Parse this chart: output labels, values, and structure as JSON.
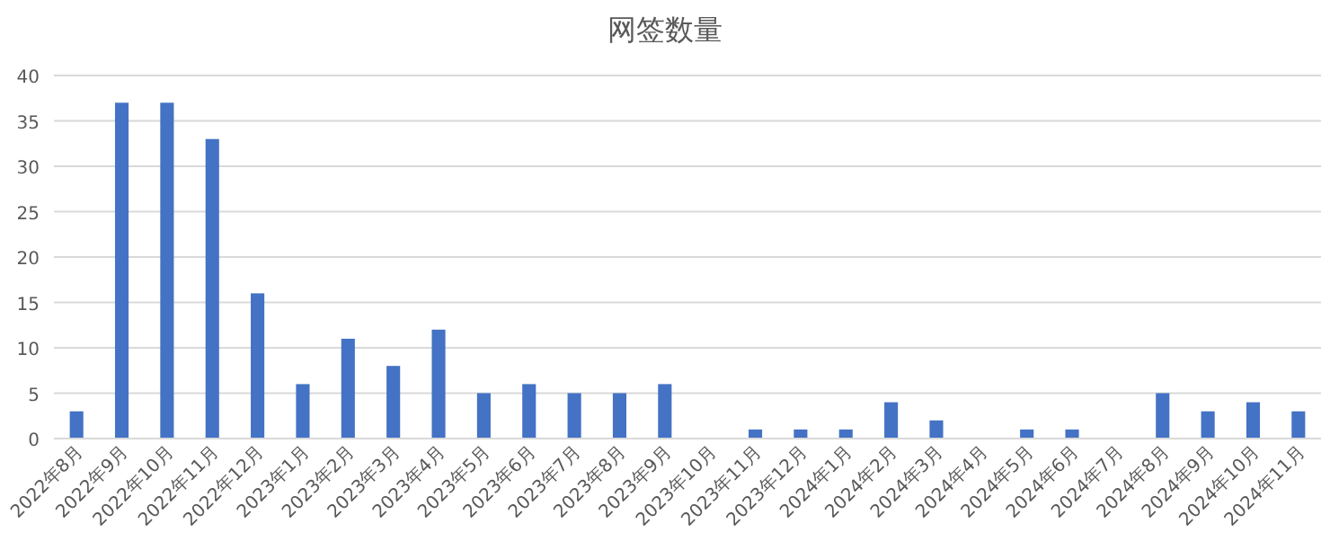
{
  "chart_data": {
    "type": "bar",
    "title": "网签数量",
    "categories": [
      "2022年8月",
      "2022年9月",
      "2022年10月",
      "2022年11月",
      "2022年12月",
      "2023年1月",
      "2023年2月",
      "2023年3月",
      "2023年4月",
      "2023年5月",
      "2023年6月",
      "2023年7月",
      "2023年8月",
      "2023年9月",
      "2023年10月",
      "2023年11月",
      "2023年12月",
      "2024年1月",
      "2024年2月",
      "2024年3月",
      "2024年4月",
      "2024年5月",
      "2024年6月",
      "2024年7月",
      "2024年8月",
      "2024年9月",
      "2024年10月",
      "2024年11月"
    ],
    "values": [
      3,
      37,
      37,
      33,
      16,
      6,
      11,
      8,
      12,
      5,
      6,
      5,
      5,
      6,
      0,
      1,
      1,
      1,
      4,
      2,
      0,
      1,
      1,
      0,
      5,
      3,
      4,
      3
    ],
    "color": "#4472c4",
    "ylim": [
      0,
      40
    ],
    "yticks": [
      0,
      5,
      10,
      15,
      20,
      25,
      30,
      35,
      40
    ],
    "grid": "y"
  }
}
